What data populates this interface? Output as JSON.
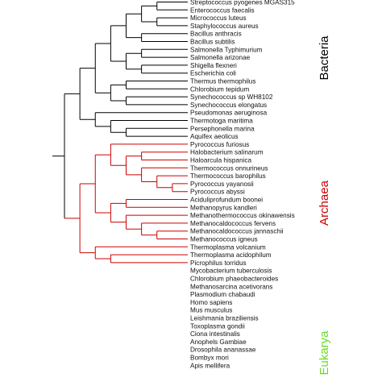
{
  "colors": {
    "bacteria": "#000000",
    "archaea": "#cc0000",
    "eukarya": "#66dd22"
  },
  "domains": [
    {
      "key": "bacteria",
      "label": "Bacteria",
      "color": "#000000"
    },
    {
      "key": "archaea",
      "label": "Archaea",
      "color": "#cc0000"
    },
    {
      "key": "eukarya",
      "label": "Eukarya",
      "color": "#66dd22"
    }
  ],
  "leaves": [
    {
      "name": "Streptococcus pyogenes MGAS315",
      "domain": "bacteria"
    },
    {
      "name": "Enterococcus faecalis",
      "domain": "bacteria"
    },
    {
      "name": "Micrococcus luteus",
      "domain": "bacteria"
    },
    {
      "name": "Staphylococcus aureus",
      "domain": "bacteria"
    },
    {
      "name": "Bacillus anthracis",
      "domain": "bacteria"
    },
    {
      "name": "Bacillus subtilis",
      "domain": "bacteria"
    },
    {
      "name": "Salmonella Typhimurium",
      "domain": "bacteria"
    },
    {
      "name": "Salmonella arizonae",
      "domain": "bacteria"
    },
    {
      "name": "Shigella flexneri",
      "domain": "bacteria"
    },
    {
      "name": "Escherichia coli",
      "domain": "bacteria"
    },
    {
      "name": "Thermus thermophilus",
      "domain": "bacteria"
    },
    {
      "name": "Chlorobium tepidum",
      "domain": "bacteria"
    },
    {
      "name": "Synechococcus sp WH8102",
      "domain": "bacteria"
    },
    {
      "name": "Synechococcus elongatus",
      "domain": "bacteria"
    },
    {
      "name": "Pseudomonas aeruginosa",
      "domain": "bacteria"
    },
    {
      "name": "Thermotoga maritima",
      "domain": "bacteria"
    },
    {
      "name": "Persephonella marina",
      "domain": "bacteria"
    },
    {
      "name": "Aquifex aeolicus",
      "domain": "bacteria"
    },
    {
      "name": "Pyrococcus furiosus",
      "domain": "archaea"
    },
    {
      "name": "Halobacterium salinarum",
      "domain": "archaea"
    },
    {
      "name": "Haloarcula hispanica",
      "domain": "archaea"
    },
    {
      "name": "Thermococcus onnurineus",
      "domain": "archaea"
    },
    {
      "name": "Thermococcus barophilus",
      "domain": "archaea"
    },
    {
      "name": "Pyrococcus yayanosii",
      "domain": "archaea"
    },
    {
      "name": "Pyrococcus abyssi",
      "domain": "archaea"
    },
    {
      "name": "Aciduliprofundum boonei",
      "domain": "archaea"
    },
    {
      "name": "Methanopyrus kandleri",
      "domain": "archaea"
    },
    {
      "name": "Methanothermococcus okinawensis",
      "domain": "archaea"
    },
    {
      "name": "Methanocaldococcus fervens",
      "domain": "archaea"
    },
    {
      "name": "Methanocaldococcus jannaschii",
      "domain": "archaea"
    },
    {
      "name": "Methanococcus igneus",
      "domain": "archaea"
    },
    {
      "name": "Thermoplasma volcanium",
      "domain": "archaea"
    },
    {
      "name": "Thermoplasma acidophilum",
      "domain": "archaea"
    },
    {
      "name": "Picrophilus torridus",
      "domain": "archaea"
    },
    {
      "name": "Mycobacterium tuberculosis",
      "domain": "bacteria"
    },
    {
      "name": "Chlorobium phaeobacteroides",
      "domain": "bacteria"
    },
    {
      "name": "Methanosarcina acetivorans",
      "domain": "archaea"
    },
    {
      "name": "Plasmodium chabaudi",
      "domain": "eukarya"
    },
    {
      "name": "Homo sapiens",
      "domain": "eukarya"
    },
    {
      "name": "Mus musculus",
      "domain": "eukarya"
    },
    {
      "name": "Leishmania braziliensis",
      "domain": "eukarya"
    },
    {
      "name": "Toxoplasma gondii",
      "domain": "eukarya"
    },
    {
      "name": "Ciona intestinalis",
      "domain": "eukarya"
    },
    {
      "name": "Anophels Gambiae",
      "domain": "eukarya"
    },
    {
      "name": "Drosophila ananassae",
      "domain": "eukarya"
    },
    {
      "name": "Bombyx mori",
      "domain": "eukarya"
    },
    {
      "name": "Apis mellifera",
      "domain": "eukarya"
    }
  ],
  "tree": [
    "(",
    "(",
    "(",
    "(",
    "(",
    "(",
    "(",
    0,
    1,
    ")",
    "(",
    2,
    3,
    ")",
    ")",
    "(",
    4,
    5,
    ")",
    ")",
    "(",
    "(",
    6,
    7,
    ")",
    "(",
    8,
    9,
    ")",
    ")",
    ")",
    "(",
    "(",
    10,
    11,
    ")",
    "(",
    12,
    13,
    ")",
    ")",
    ")",
    "(",
    14,
    "(",
    15,
    "(",
    16,
    17,
    ")",
    ")",
    ")",
    ")",
    "(",
    "(",
    "(",
    18,
    "(",
    "(",
    19,
    20,
    ")",
    "(",
    21,
    "(",
    22,
    "(",
    23,
    24,
    ")",
    ")",
    ")",
    ")",
    ")",
    "(",
    "(",
    25,
    26,
    ")",
    "(",
    27,
    "(",
    28,
    "(",
    29,
    30,
    ")",
    ")",
    ")",
    ")",
    ")",
    "(",
    31,
    "(",
    32,
    33,
    ")",
    ")",
    ")",
    ")",
    "(",
    "(",
    34,
    "(",
    35,
    36,
    ")",
    ")",
    "(",
    37,
    "(",
    "(",
    38,
    39,
    ")",
    "(",
    40,
    "(",
    41,
    "(",
    42,
    "(",
    43,
    "(",
    44,
    "(",
    45,
    46,
    ")",
    ")",
    ")",
    ")",
    ")",
    ")",
    ")",
    ")",
    ")",
    ")"
  ]
}
